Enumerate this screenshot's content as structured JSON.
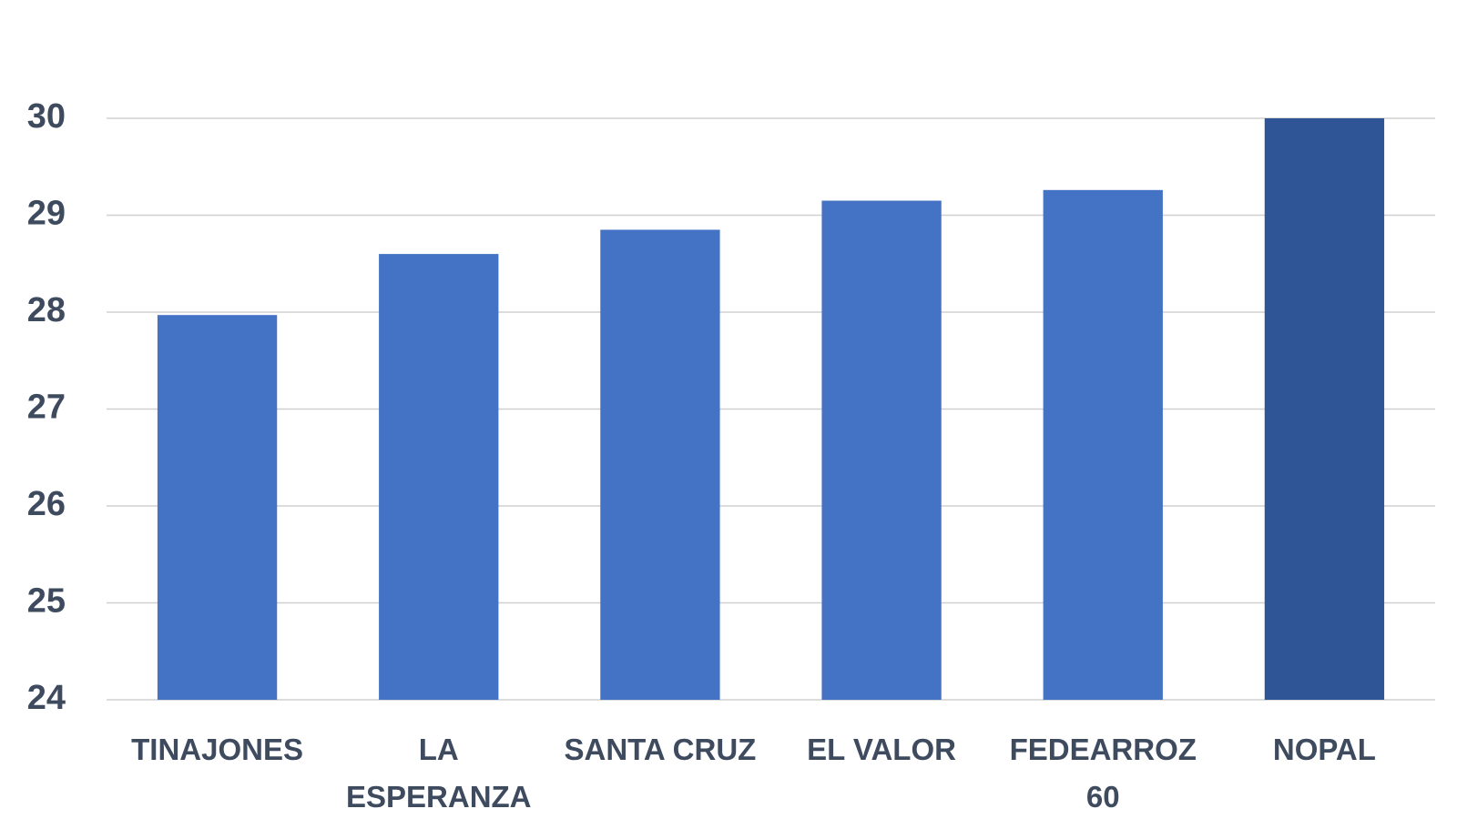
{
  "chart_data": {
    "type": "bar",
    "categories": [
      "TINAJONES",
      "LA ESPERANZA",
      "SANTA CRUZ",
      "EL VALOR",
      "FEDEARROZ 60",
      "NOPAL"
    ],
    "values": [
      27.97,
      28.6,
      28.85,
      29.15,
      29.26,
      30
    ],
    "colors": [
      "#4472c4",
      "#4472c4",
      "#4472c4",
      "#4472c4",
      "#4472c4",
      "#2f5597"
    ],
    "ylim": [
      24,
      30
    ],
    "yticks": [
      24,
      25,
      26,
      27,
      28,
      29,
      30
    ],
    "grid": true
  }
}
